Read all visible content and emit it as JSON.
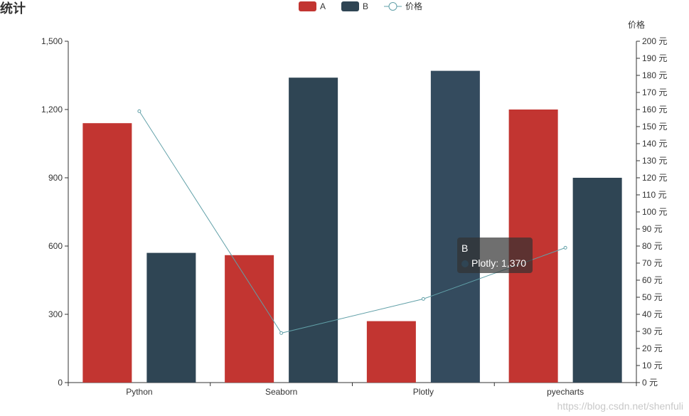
{
  "chart_data": {
    "type": "bar",
    "title": "统计",
    "categories": [
      "Python",
      "Seaborn",
      "Plotly",
      "pyecharts"
    ],
    "series": [
      {
        "name": "A",
        "type": "bar",
        "color": "#c23531",
        "values": [
          1140,
          560,
          270,
          1200
        ]
      },
      {
        "name": "B",
        "type": "bar",
        "color": "#2f4554",
        "values": [
          570,
          1340,
          1370,
          900
        ]
      },
      {
        "name": "价格",
        "type": "line",
        "color": "#61a0a8",
        "axis": "right",
        "values": [
          159,
          29,
          49,
          79
        ]
      }
    ],
    "y_left": {
      "min": 0,
      "max": 1500,
      "ticks": [
        "0",
        "300",
        "600",
        "900",
        "1,200",
        "1,500"
      ]
    },
    "y_right": {
      "name": "价格",
      "min": 0,
      "max": 200,
      "unit": "元",
      "ticks": [
        "0 元",
        "10 元",
        "20 元",
        "30 元",
        "40 元",
        "50 元",
        "60 元",
        "70 元",
        "80 元",
        "90 元",
        "100 元",
        "110 元",
        "120 元",
        "130 元",
        "140 元",
        "150 元",
        "160 元",
        "170 元",
        "180 元",
        "190 元",
        "200 元"
      ]
    },
    "legend": {
      "placement": "top-center",
      "items": [
        "A",
        "B",
        "价格"
      ]
    },
    "highlighted": {
      "series": "B",
      "category": "Plotly",
      "color": "#344b5e"
    },
    "grid": false
  },
  "tooltip": {
    "title": "B",
    "row": "Plotly: 1,370",
    "dot_color": "#2f4554"
  },
  "watermark": "https://blog.csdn.net/shenfuli"
}
